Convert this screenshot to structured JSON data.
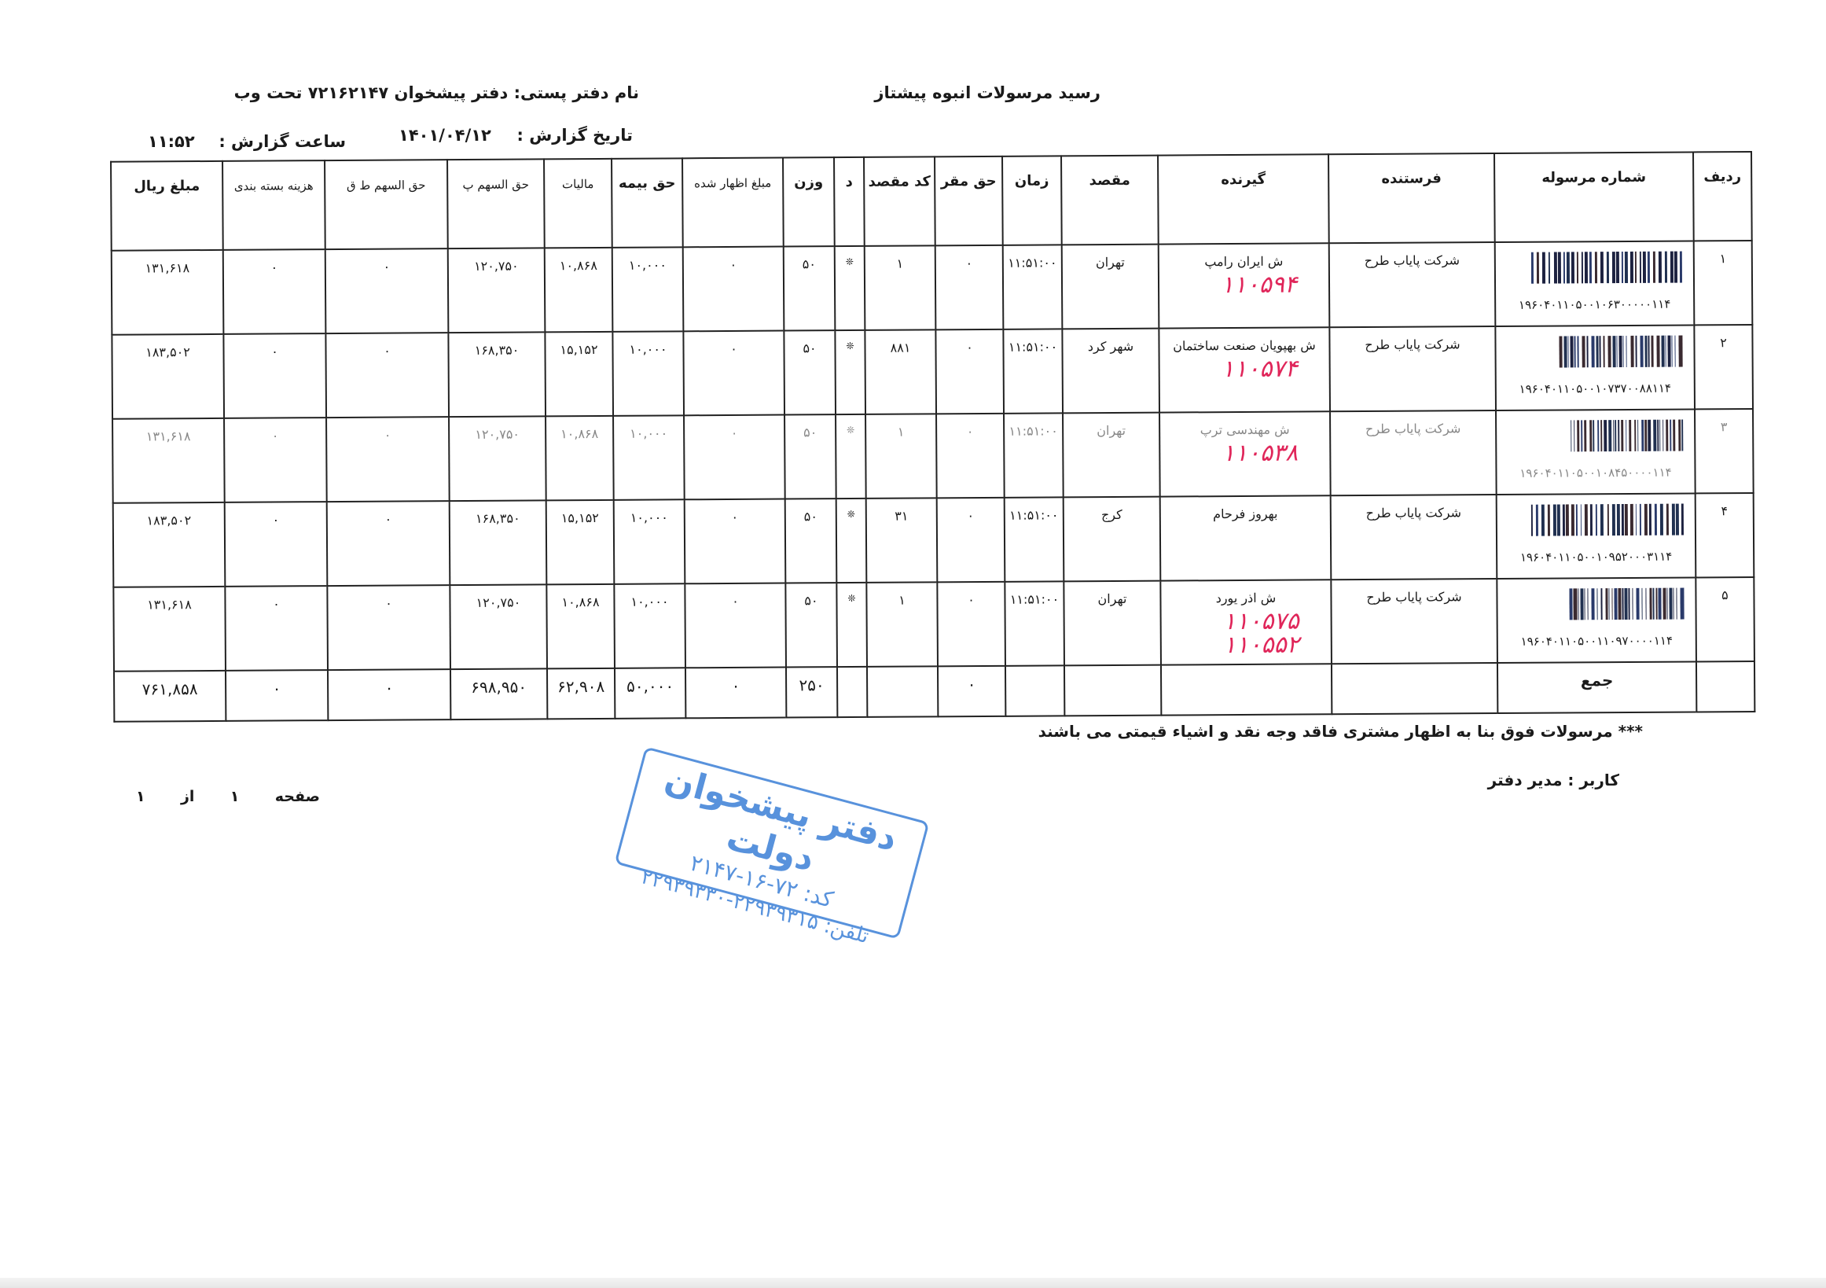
{
  "header": {
    "title": "رسید مرسولات انبوه  پیشتاز",
    "office_label": "نام دفتر پستی:  دفتر پیشخوان ۷۲۱۶۲۱۴۷ تحت وب",
    "report_date_label": "تاریخ گزارش :",
    "report_date": "۱۴۰۱/۰۴/۱۲",
    "report_time_label": "ساعت گزارش :",
    "report_time": "۱۱:۵۲"
  },
  "table": {
    "columns": [
      "ردیف",
      "شماره مرسوله",
      "فرستنده",
      "گیرنده",
      "مقصد",
      "زمان",
      "حق مقر",
      "کد مقصد",
      "د",
      "وزن",
      "مبلغ اظهار شده",
      "حق بیمه",
      "مالیات",
      "حق السهم پ",
      "حق السهم ط ق",
      "هزینه بسته بندی",
      "مبلغ ریال"
    ],
    "rows": [
      {
        "row": "۱",
        "tracking": "۱۹۶۰۴۰۱۱۰۵۰۰۱۰۶۳۰۰۰۰۰۱۱۴",
        "sender": "شرکت پایاب طرح",
        "receiver": "ش ایران رامپ",
        "handwritten": [
          "۱۱۰۵۹۴"
        ],
        "destination": "تهران",
        "time": "۱۱:۵۱:۰۰",
        "base_fee": "۰",
        "dest_code": "۱",
        "d": "❊",
        "weight": "۵۰",
        "declared": "۰",
        "insurance": "۱۰,۰۰۰",
        "tax": "۱۰,۸۶۸",
        "share_p": "۱۲۰,۷۵۰",
        "share_tq": "۰",
        "packaging": "۰",
        "amount": "۱۳۱,۶۱۸"
      },
      {
        "row": "۲",
        "tracking": "۱۹۶۰۴۰۱۱۰۵۰۰۱۰۷۳۷۰۰۸۸۱۱۴",
        "sender": "شرکت پایاب طرح",
        "receiver": "ش بهپویان صنعت ساختمان",
        "handwritten": [
          "۱۱۰۵۷۴"
        ],
        "destination": "شهر کرد",
        "time": "۱۱:۵۱:۰۰",
        "base_fee": "۰",
        "dest_code": "۸۸۱",
        "d": "❊",
        "weight": "۵۰",
        "declared": "۰",
        "insurance": "۱۰,۰۰۰",
        "tax": "۱۵,۱۵۲",
        "share_p": "۱۶۸,۳۵۰",
        "share_tq": "۰",
        "packaging": "۰",
        "amount": "۱۸۳,۵۰۲"
      },
      {
        "row": "۳",
        "tracking": "۱۹۶۰۴۰۱۱۰۵۰۰۱۰۸۴۵۰۰۰۰۱۱۴",
        "sender": "شرکت پایاب طرح",
        "receiver": "ش مهندسی ترپ",
        "handwritten": [
          "۱۱۰۵۳۸"
        ],
        "destination": "تهران",
        "time": "۱۱:۵۱:۰۰",
        "base_fee": "۰",
        "dest_code": "۱",
        "d": "❊",
        "weight": "۵۰",
        "declared": "۰",
        "insurance": "۱۰,۰۰۰",
        "tax": "۱۰,۸۶۸",
        "share_p": "۱۲۰,۷۵۰",
        "share_tq": "۰",
        "packaging": "۰",
        "amount": "۱۳۱,۶۱۸"
      },
      {
        "row": "۴",
        "tracking": "۱۹۶۰۴۰۱۱۰۵۰۰۱۰۹۵۲۰۰۰۳۱۱۴",
        "sender": "شرکت پایاب طرح",
        "receiver": "بهروز فرحام",
        "handwritten": [],
        "destination": "کرج",
        "time": "۱۱:۵۱:۰۰",
        "base_fee": "۰",
        "dest_code": "۳۱",
        "d": "❊",
        "weight": "۵۰",
        "declared": "۰",
        "insurance": "۱۰,۰۰۰",
        "tax": "۱۵,۱۵۲",
        "share_p": "۱۶۸,۳۵۰",
        "share_tq": "۰",
        "packaging": "۰",
        "amount": "۱۸۳,۵۰۲"
      },
      {
        "row": "۵",
        "tracking": "۱۹۶۰۴۰۱۱۰۵۰۰۱۱۰۹۷۰۰۰۰۱۱۴",
        "sender": "شرکت پایاب طرح",
        "receiver": "ش اذر یورد",
        "handwritten": [
          "۱۱۰۵۷۵",
          "۱۱۰۵۵۲"
        ],
        "destination": "تهران",
        "time": "۱۱:۵۱:۰۰",
        "base_fee": "۰",
        "dest_code": "۱",
        "d": "❊",
        "weight": "۵۰",
        "declared": "۰",
        "insurance": "۱۰,۰۰۰",
        "tax": "۱۰,۸۶۸",
        "share_p": "۱۲۰,۷۵۰",
        "share_tq": "۰",
        "packaging": "۰",
        "amount": "۱۳۱,۶۱۸"
      }
    ],
    "total": {
      "label": "جمع",
      "base_fee": "۰",
      "weight": "۲۵۰",
      "declared": "۰",
      "insurance": "۵۰,۰۰۰",
      "tax": "۶۲,۹۰۸",
      "share_p": "۶۹۸,۹۵۰",
      "share_tq": "۰",
      "packaging": "۰",
      "amount": "۷۶۱,۸۵۸"
    }
  },
  "footer": {
    "note": "*** مرسولات فوق  بنا به اظهار مشتری فاقد وجه نقد و اشیاء قیمتی می باشند",
    "user": "کاربر : مدیر دفتر",
    "page_label": "صفحه",
    "page_current": "۱",
    "page_of": "از",
    "page_total": "۱"
  },
  "stamp": {
    "name": "دفتر پیشخوان دولت",
    "code": "کد: ۷۲-۱۶-۲۱۴۷",
    "phone": "تلفن: ۲۲۹۳۹۳۱۵-۲۲۹۳۹۳۳۰",
    "color": "#3b7fd6"
  },
  "colors": {
    "handwriting": "#e0265a",
    "ink": "#1a1a1a"
  }
}
